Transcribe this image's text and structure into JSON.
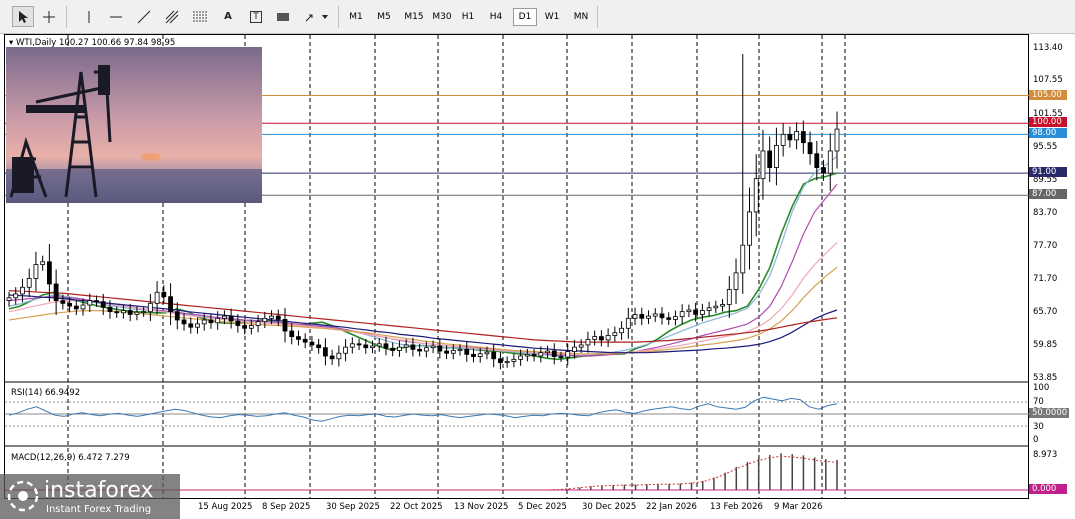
{
  "toolbar": {
    "timeframes": [
      "M1",
      "M5",
      "M15",
      "M30",
      "H1",
      "H4",
      "D1",
      "W1",
      "MN"
    ],
    "selected_timeframe": "D1",
    "tools": [
      "cursor-icon",
      "crosshair-icon",
      "vertical-line-icon",
      "horizontal-line-icon",
      "trendline-icon",
      "andrews-pitchfork-icon",
      "fibonacci-icon",
      "text-icon",
      "text-label-icon",
      "rectangle-label-icon",
      "arrows-dropdown-icon"
    ],
    "text_tool_label": "A",
    "label_tool_label": "T"
  },
  "chart_header": {
    "symbol_label": "WTI,Daily",
    "ohlc": "100.27 100.66 97.84 98.95"
  },
  "indicators": {
    "rsi_label": "RSI(14) 66.9492",
    "macd_label": "MACD(12,26,9) 6.472 7.279",
    "rsi_levels": [
      "100",
      "70",
      "50",
      "30",
      "0"
    ],
    "rsi_tag": "50.0000",
    "macd_top": "8.973",
    "macd_tag": "0.000"
  },
  "logo": {
    "brand": "instaforex",
    "tagline": "Instant Forex Trading"
  },
  "colors": {
    "bull": "#000000",
    "bear": "#000000",
    "ema_fast": "#2a8a2a",
    "ema_mid": "#8ab4d8",
    "ema_slow": "#b04cb0",
    "ema_pink": "#f0a8b8",
    "ema_orange": "#d8a050",
    "ema_navy": "#1a1a7a",
    "sma_red": "#b02020",
    "rsi_line": "#3a7ab8",
    "tag_105": "#d28c3a",
    "tag_100": "#c8102e",
    "tag_98": "#2a8fd8",
    "tag_91": "#2a2a6a",
    "tag_87": "#666666"
  },
  "chart_data": {
    "type": "candlestick",
    "symbol": "WTI",
    "timeframe": "Daily",
    "ylim": [
      53.85,
      113.4
    ],
    "y_ticks": [
      "113.40",
      "107.55",
      "101.55",
      "95.55",
      "89.55",
      "83.70",
      "77.70",
      "71.70",
      "65.70",
      "59.85",
      "53.85"
    ],
    "x_ticks": [
      "15 Aug 2025",
      "8 Sep 2025",
      "30 Sep 2025",
      "22 Oct 2025",
      "13 Nov 2025",
      "5 Dec 2025",
      "30 Dec 2025",
      "22 Jan 2026",
      "13 Feb 2026",
      "9 Mar 2026"
    ],
    "horizontal_levels": [
      {
        "label": "105.00",
        "value": 105.0,
        "color_key": "tag_105"
      },
      {
        "label": "100.00",
        "value": 100.0,
        "color_key": "tag_100"
      },
      {
        "label": "98.00",
        "value": 98.0,
        "color_key": "tag_98"
      },
      {
        "label": "91.00",
        "value": 91.0,
        "color_key": "tag_91"
      },
      {
        "label": "87.00",
        "value": 87.0,
        "color_key": "tag_87"
      }
    ],
    "close_path": [
      68.5,
      69.2,
      70.4,
      72.0,
      74.5,
      75.0,
      71.0,
      68.0,
      67.5,
      67.0,
      66.5,
      67.2,
      68.0,
      67.8,
      66.8,
      66.0,
      65.8,
      66.2,
      65.5,
      65.9,
      66.0,
      67.5,
      69.5,
      68.7,
      66.0,
      64.5,
      63.8,
      63.2,
      63.8,
      64.5,
      64.0,
      64.8,
      65.2,
      64.3,
      63.5,
      63.0,
      63.5,
      64.2,
      64.8,
      65.2,
      64.6,
      62.5,
      61.5,
      61.0,
      60.5,
      60.0,
      59.5,
      58.0,
      57.5,
      58.5,
      59.6,
      60.2,
      60.0,
      59.5,
      59.8,
      60.2,
      59.4,
      59.0,
      59.6,
      60.0,
      59.2,
      58.9,
      59.5,
      59.8,
      58.9,
      58.5,
      59.0,
      59.2,
      58.3,
      57.9,
      58.4,
      58.7,
      57.5,
      56.8,
      57.0,
      57.4,
      58.0,
      58.3,
      58.0,
      58.6,
      58.9,
      57.9,
      57.8,
      58.8,
      59.6,
      60.0,
      61.0,
      61.5,
      60.9,
      61.7,
      62.2,
      63.0,
      64.8,
      65.5,
      64.8,
      65.2,
      65.6,
      64.9,
      64.6,
      65.1,
      66.0,
      66.3,
      65.5,
      66.2,
      66.7,
      67.0,
      67.3,
      70.0,
      73.0,
      78.0,
      84.0,
      90.0,
      95.0,
      92.0,
      96.0,
      98.0,
      97.0,
      98.5,
      96.5,
      94.5,
      92.0,
      91.0,
      95.0,
      98.95
    ],
    "series": [
      {
        "name": "",
        "color_key": "ema_fast",
        "values": [
          66.5,
          67.0,
          68.0,
          69.0,
          69.5,
          68.5,
          68.0,
          67.5,
          67.0,
          66.6,
          66.3,
          66.0,
          65.9,
          65.8,
          65.8,
          66.5,
          66.0,
          65.0,
          64.4,
          64.0,
          63.9,
          64.1,
          64.3,
          64.5,
          64.1,
          63.7,
          63.6,
          63.9,
          64.1,
          63.4,
          62.5,
          61.6,
          60.7,
          59.8,
          59.2,
          59.4,
          59.8,
          59.9,
          59.7,
          59.5,
          59.4,
          59.3,
          59.1,
          58.9,
          58.8,
          58.5,
          58.3,
          58.0,
          57.6,
          57.4,
          57.6,
          57.9,
          58.1,
          58.3,
          58.3,
          58.4,
          59.3,
          60.0,
          61.1,
          62.5,
          63.6,
          64.5,
          65.0,
          65.3,
          65.9,
          66.2,
          67.0,
          70.0,
          74.0,
          80.0,
          85.0,
          89.0,
          90.0,
          90.4,
          91.0
        ]
      },
      {
        "name": "",
        "color_key": "ema_mid",
        "values": [
          67.0,
          67.4,
          68.0,
          68.6,
          69.0,
          68.8,
          68.5,
          68.0,
          67.5,
          67.1,
          66.8,
          66.5,
          66.3,
          66.2,
          66.0,
          65.8,
          65.5,
          65.2,
          64.9,
          64.7,
          64.5,
          64.4,
          64.3,
          64.2,
          64.0,
          63.7,
          63.5,
          63.4,
          63.4,
          63.2,
          62.8,
          62.3,
          61.8,
          61.2,
          60.6,
          60.1,
          59.9,
          59.8,
          59.7,
          59.5,
          59.4,
          59.3,
          59.2,
          59.1,
          58.9,
          58.8,
          58.6,
          58.4,
          58.2,
          58.0,
          58.0,
          58.1,
          58.3,
          58.5,
          58.7,
          59.0,
          59.5,
          60.1,
          60.8,
          61.6,
          62.4,
          63.2,
          64.0,
          64.6,
          65.2,
          65.8,
          66.6,
          69.0,
          72.5,
          78.0,
          84.0,
          88.5,
          91.0,
          92.5,
          94.0
        ]
      },
      {
        "name": "",
        "color_key": "ema_slow",
        "values": [
          68.0,
          68.2,
          68.4,
          68.6,
          68.7,
          68.6,
          68.4,
          68.1,
          67.8,
          67.4,
          67.1,
          66.8,
          66.5,
          66.3,
          66.1,
          65.9,
          65.6,
          65.4,
          65.1,
          64.9,
          64.7,
          64.5,
          64.4,
          64.2,
          64.1,
          63.9,
          63.7,
          63.5,
          63.3,
          63.1,
          62.8,
          62.4,
          62.0,
          61.6,
          61.2,
          60.8,
          60.5,
          60.3,
          60.1,
          59.9,
          59.7,
          59.6,
          59.4,
          59.3,
          59.1,
          59.0,
          58.8,
          58.6,
          58.4,
          58.2,
          58.1,
          58.0,
          58.0,
          58.1,
          58.3,
          58.5,
          58.8,
          59.2,
          59.6,
          60.1,
          60.6,
          61.1,
          61.7,
          62.2,
          62.7,
          63.2,
          63.8,
          65.0,
          67.0,
          70.5,
          75.0,
          80.0,
          84.0,
          86.5,
          89.0
        ]
      },
      {
        "name": "",
        "color_key": "ema_pink",
        "values": [
          66.0,
          66.4,
          66.9,
          67.3,
          67.7,
          67.9,
          68.0,
          67.9,
          67.7,
          67.4,
          67.1,
          66.8,
          66.5,
          66.2,
          65.9,
          65.6,
          65.3,
          65.1,
          64.8,
          64.6,
          64.4,
          64.2,
          64.0,
          63.9,
          63.8,
          63.7,
          63.5,
          63.3,
          63.1,
          62.9,
          62.6,
          62.3,
          61.9,
          61.6,
          61.2,
          60.9,
          60.6,
          60.3,
          60.1,
          59.9,
          59.7,
          59.5,
          59.3,
          59.1,
          59.0,
          58.9,
          58.8,
          58.6,
          58.5,
          58.4,
          58.3,
          58.3,
          58.3,
          58.4,
          58.5,
          58.6,
          58.8,
          59.0,
          59.3,
          59.6,
          59.9,
          60.3,
          60.7,
          61.1,
          61.5,
          61.9,
          62.4,
          63.3,
          64.6,
          66.5,
          69.0,
          72.0,
          74.5,
          76.5,
          78.5
        ]
      },
      {
        "name": "",
        "color_key": "ema_orange",
        "values": [
          64.5,
          64.8,
          65.1,
          65.4,
          65.7,
          65.9,
          66.1,
          66.2,
          66.2,
          66.1,
          66.0,
          65.8,
          65.6,
          65.4,
          65.2,
          65.0,
          64.8,
          64.6,
          64.4,
          64.2,
          64.0,
          63.9,
          63.7,
          63.6,
          63.5,
          63.4,
          63.3,
          63.1,
          63.0,
          62.8,
          62.6,
          62.4,
          62.2,
          61.9,
          61.6,
          61.3,
          61.0,
          60.7,
          60.5,
          60.2,
          60.0,
          59.8,
          59.6,
          59.4,
          59.2,
          59.0,
          58.9,
          58.8,
          58.7,
          58.6,
          58.5,
          58.4,
          58.4,
          58.4,
          58.4,
          58.5,
          58.6,
          58.8,
          59.0,
          59.2,
          59.4,
          59.7,
          60.0,
          60.2,
          60.5,
          60.8,
          61.2,
          61.9,
          62.9,
          64.3,
          66.2,
          68.5,
          70.6,
          72.4,
          74.0
        ]
      },
      {
        "name": "",
        "color_key": "ema_navy",
        "values": [
          69.0,
          68.9,
          68.8,
          68.6,
          68.5,
          68.3,
          68.1,
          67.9,
          67.7,
          67.5,
          67.3,
          67.1,
          66.9,
          66.7,
          66.5,
          66.3,
          66.0,
          65.8,
          65.6,
          65.4,
          65.2,
          65.0,
          64.8,
          64.6,
          64.4,
          64.2,
          64.0,
          63.8,
          63.6,
          63.4,
          63.2,
          62.9,
          62.7,
          62.4,
          62.2,
          61.9,
          61.7,
          61.5,
          61.2,
          61.0,
          60.8,
          60.6,
          60.4,
          60.2,
          60.0,
          59.8,
          59.6,
          59.4,
          59.3,
          59.1,
          59.0,
          58.9,
          58.8,
          58.7,
          58.6,
          58.6,
          58.6,
          58.6,
          58.7,
          58.8,
          58.9,
          59.0,
          59.1,
          59.3,
          59.4,
          59.6,
          59.8,
          60.1,
          60.6,
          61.3,
          62.3,
          63.5,
          64.7,
          65.6,
          66.3
        ]
      },
      {
        "name": "",
        "color_key": "sma_red",
        "values": [
          69.8,
          69.7,
          69.6,
          69.5,
          69.4,
          69.3,
          69.1,
          68.9,
          68.7,
          68.5,
          68.3,
          68.1,
          67.9,
          67.7,
          67.5,
          67.3,
          67.1,
          66.9,
          66.7,
          66.5,
          66.3,
          66.1,
          65.9,
          65.7,
          65.5,
          65.3,
          65.1,
          64.9,
          64.7,
          64.5,
          64.3,
          64.1,
          63.9,
          63.7,
          63.5,
          63.3,
          63.1,
          62.9,
          62.7,
          62.5,
          62.3,
          62.1,
          61.9,
          61.7,
          61.5,
          61.3,
          61.1,
          60.9,
          60.8,
          60.7,
          60.6,
          60.5,
          60.5,
          60.5,
          60.5,
          60.5,
          60.5,
          60.6,
          60.7,
          60.8,
          61.0,
          61.2,
          61.4,
          61.6,
          61.8,
          62.0,
          62.2,
          62.5,
          62.8,
          63.2,
          63.6,
          64.0,
          64.3,
          64.6,
          64.9
        ]
      }
    ],
    "rsi_values": [
      48,
      52,
      58,
      62,
      55,
      48,
      46,
      50,
      52,
      49,
      47,
      50,
      51,
      48,
      46,
      49,
      52,
      55,
      58,
      56,
      52,
      48,
      45,
      44,
      47,
      49,
      48,
      46,
      47,
      50,
      52,
      48,
      45,
      40,
      38,
      42,
      46,
      48,
      47,
      49,
      50,
      46,
      45,
      48,
      50,
      48,
      47,
      49,
      46,
      44,
      46,
      48,
      50,
      49,
      47,
      44,
      46,
      48,
      47,
      50,
      51,
      50,
      48,
      47,
      52,
      55,
      57,
      53,
      51,
      55,
      58,
      60,
      62,
      59,
      57,
      63,
      67,
      62,
      60,
      58,
      61,
      72,
      78,
      75,
      72,
      76,
      74,
      62,
      58,
      64,
      67
    ],
    "macd_hist": [
      0.0,
      0.0,
      0.0,
      0.0,
      0.0,
      0.0,
      0.0,
      0.0,
      0.0,
      0.0,
      0.0,
      0.0,
      0.0,
      0.0,
      0.0,
      0.0,
      0.0,
      0.0,
      0.0,
      0.0,
      0.0,
      0.0,
      0.0,
      0.0,
      0.0,
      0.0,
      0.0,
      0.0,
      0.0,
      0.0,
      0.0,
      0.0,
      0.0,
      0.0,
      0.0,
      0.0,
      0.0,
      0.0,
      0.0,
      0.0,
      0.0,
      0.0,
      0.0,
      0.0,
      0.0,
      0.0,
      0.0,
      0.0,
      0.0,
      0.1,
      0.3,
      0.6,
      0.9,
      1.1,
      1.2,
      1.3,
      1.3,
      1.4,
      1.5,
      1.5,
      1.6,
      1.8,
      2.2,
      3.0,
      4.2,
      5.6,
      6.8,
      7.8,
      8.5,
      8.9,
      8.7,
      8.4,
      7.9,
      7.5,
      7.3
    ]
  }
}
